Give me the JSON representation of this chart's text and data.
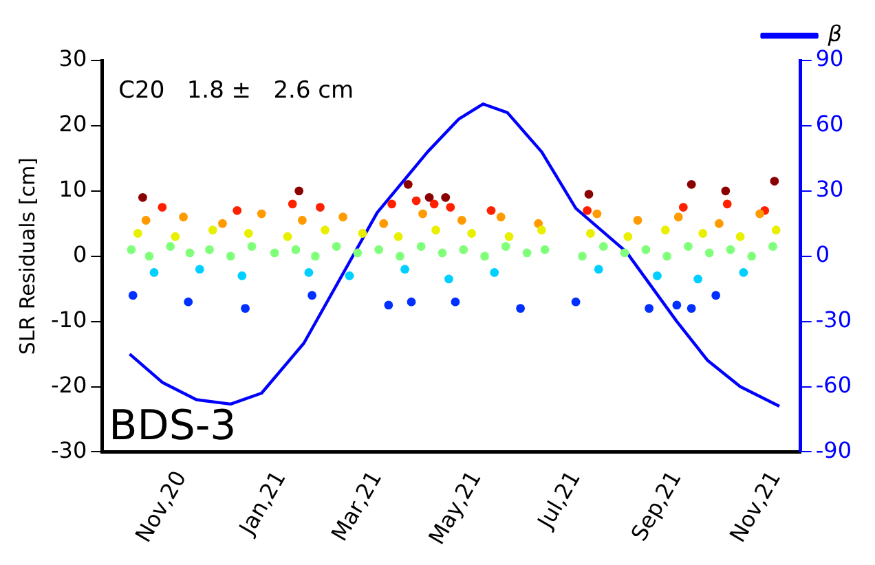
{
  "chart_data": {
    "type": "scatter",
    "ylabel": "SLR Residuals [cm]",
    "annotations": [
      "C20   1.8 ±   2.6 cm",
      "BDS-3"
    ],
    "xlim": [
      "2020-09-13",
      "2021-11-16"
    ],
    "xticks": [
      {
        "value": "2020-11-01",
        "label": "Nov,20"
      },
      {
        "value": "2021-01-01",
        "label": "Jan,21"
      },
      {
        "value": "2021-03-01",
        "label": "Mar,21"
      },
      {
        "value": "2021-05-01",
        "label": "May,21"
      },
      {
        "value": "2021-07-01",
        "label": "Jul,21"
      },
      {
        "value": "2021-09-01",
        "label": "Sep,21"
      },
      {
        "value": "2021-11-01",
        "label": "Nov,21"
      }
    ],
    "ylim": [
      -30,
      30
    ],
    "yticks": [
      -30,
      -20,
      -10,
      0,
      10,
      20,
      30
    ],
    "y2lim": [
      -90,
      90
    ],
    "y2ticks": [
      -90,
      -60,
      -30,
      0,
      30,
      60,
      90
    ],
    "grid": false,
    "legend": "top right",
    "marker": "circle",
    "series": [
      {
        "color": "#80ff7a",
        "x": [
          "2020-10-01",
          "2020-10-12",
          "2020-10-25",
          "2020-11-06",
          "2020-11-18",
          "2020-12-01",
          "2020-12-14",
          "2020-12-28",
          "2021-01-10",
          "2021-01-22",
          "2021-02-04",
          "2021-02-17",
          "2021-03-02",
          "2021-03-15",
          "2021-03-28",
          "2021-04-10",
          "2021-04-23",
          "2021-05-06",
          "2021-05-19",
          "2021-06-01",
          "2021-06-12",
          "2021-07-05",
          "2021-07-18",
          "2021-07-31",
          "2021-08-13",
          "2021-08-26",
          "2021-09-08",
          "2021-09-21",
          "2021-10-04",
          "2021-10-17",
          "2021-10-30"
        ],
        "values": [
          1,
          0,
          1.5,
          0.5,
          1,
          0,
          1.5,
          0.5,
          1,
          0,
          1.5,
          0.5,
          1,
          0,
          1.5,
          0.5,
          1,
          0,
          1.5,
          0.5,
          1,
          0,
          1.5,
          0.5,
          1,
          0,
          1.5,
          0.5,
          1,
          0,
          1.5
        ]
      },
      {
        "color": "#e8f000",
        "x": [
          "2020-10-05",
          "2020-10-28",
          "2020-11-20",
          "2020-12-12",
          "2021-01-05",
          "2021-01-28",
          "2021-02-20",
          "2021-03-14",
          "2021-04-06",
          "2021-04-28",
          "2021-05-21",
          "2021-06-10",
          "2021-07-10",
          "2021-08-02",
          "2021-08-25",
          "2021-09-17",
          "2021-10-10",
          "2021-11-01"
        ],
        "values": [
          3.5,
          3,
          4,
          3.5,
          3,
          4,
          3.5,
          3,
          4,
          3.5,
          3,
          4,
          3.5,
          3,
          4,
          3.5,
          3,
          4
        ]
      },
      {
        "color": "#ff9a00",
        "x": [
          "2020-10-10",
          "2020-11-02",
          "2020-11-26",
          "2020-12-20",
          "2021-01-14",
          "2021-02-08",
          "2021-03-05",
          "2021-03-29",
          "2021-04-22",
          "2021-05-16",
          "2021-06-08",
          "2021-07-14",
          "2021-08-08",
          "2021-09-02",
          "2021-09-27",
          "2021-10-22"
        ],
        "values": [
          5.5,
          6,
          5,
          6.5,
          5.5,
          6,
          5,
          6.5,
          5.5,
          6,
          5,
          6.5,
          5.5,
          6,
          5,
          6.5
        ]
      },
      {
        "color": "#ff2000",
        "x": [
          "2020-10-20",
          "2020-12-05",
          "2021-01-08",
          "2021-01-25",
          "2021-03-10",
          "2021-03-25",
          "2021-04-05",
          "2021-04-15",
          "2021-05-10",
          "2021-07-08",
          "2021-09-05",
          "2021-10-02",
          "2021-10-25"
        ],
        "values": [
          7.5,
          7,
          8,
          7.5,
          8,
          8.5,
          8,
          7.5,
          7,
          7,
          7.5,
          8,
          7
        ]
      },
      {
        "color": "#8b0000",
        "x": [
          "2020-10-08",
          "2021-01-12",
          "2021-03-20",
          "2021-04-02",
          "2021-04-12",
          "2021-07-09",
          "2021-09-10",
          "2021-10-01",
          "2021-10-31"
        ],
        "values": [
          9,
          10,
          11,
          9,
          9,
          9.5,
          11,
          10,
          11.5
        ]
      },
      {
        "color": "#00d0ff",
        "x": [
          "2020-10-15",
          "2020-11-12",
          "2020-12-08",
          "2021-01-18",
          "2021-02-12",
          "2021-03-18",
          "2021-04-14",
          "2021-05-12",
          "2021-07-15",
          "2021-08-20",
          "2021-09-14",
          "2021-10-12"
        ],
        "values": [
          -2.5,
          -2,
          -3,
          -2.5,
          -3,
          -2,
          -3.5,
          -2.5,
          -2,
          -3,
          -3.5,
          -2.5
        ]
      },
      {
        "color": "#0030ff",
        "x": [
          "2020-10-02",
          "2020-11-05",
          "2020-12-10",
          "2021-01-20",
          "2021-03-08",
          "2021-03-22",
          "2021-04-18",
          "2021-05-28",
          "2021-07-01",
          "2021-08-15",
          "2021-09-01",
          "2021-09-10",
          "2021-09-25"
        ],
        "values": [
          -6,
          -7,
          -8,
          -6,
          -7.5,
          -7,
          -7,
          -8,
          -7,
          -8,
          -7.5,
          -8,
          -6
        ]
      },
      {
        "type": "line",
        "axis": "y2",
        "name": "β",
        "color": "#0000ff",
        "marker": "none",
        "x": [
          "2020-09-30",
          "2020-10-20",
          "2020-11-10",
          "2020-12-01",
          "2020-12-20",
          "2021-01-15",
          "2021-02-14",
          "2021-03-01",
          "2021-04-01",
          "2021-04-20",
          "2021-05-05",
          "2021-05-20",
          "2021-06-10",
          "2021-07-01",
          "2021-08-01",
          "2021-09-01",
          "2021-09-20",
          "2021-10-10",
          "2021-11-03"
        ],
        "values": [
          -45,
          -58,
          -66,
          -68,
          -63,
          -40,
          0,
          20,
          48,
          63,
          70,
          66,
          48,
          22,
          2,
          -30,
          -48,
          -60,
          -69
        ]
      }
    ]
  }
}
